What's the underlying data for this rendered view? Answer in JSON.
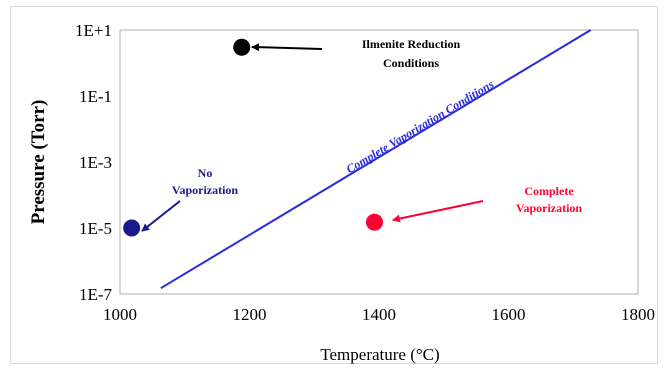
{
  "chart_data": {
    "type": "scatter",
    "xlabel": "Temperature (°C)",
    "ylabel": "Pressure (Torr)",
    "xlim": [
      1000,
      1800
    ],
    "ylim_log10": [
      -7,
      1
    ],
    "x_scale": "linear",
    "y_scale": "log",
    "x_ticks": [
      "1000",
      "1200",
      "1400",
      "1600",
      "1800"
    ],
    "y_ticks": [
      "1E-7",
      "1E-5",
      "1E-3",
      "1E-1",
      "1E+1"
    ],
    "grid": false,
    "line": {
      "label": "Complete Vaporization Conditions",
      "color": "#2a2ae0",
      "x": [
        1063,
        1727
      ],
      "y": [
        1.5e-07,
        10
      ]
    },
    "points": [
      {
        "label_lines": [
          "Ilmenite Reduction",
          "Conditions"
        ],
        "x": 1188,
        "y": 3,
        "color": "#000000",
        "label_color": "#000000"
      },
      {
        "label_lines": [
          "No",
          "Vaporization"
        ],
        "x": 1018,
        "y": 1e-05,
        "color": "#1a1a8c",
        "label_color": "#1a1a8c"
      },
      {
        "label_lines": [
          "Complete",
          "Vaporization"
        ],
        "x": 1393,
        "y": 1.5e-05,
        "color": "#ff0033",
        "label_color": "#ff0033"
      }
    ]
  }
}
